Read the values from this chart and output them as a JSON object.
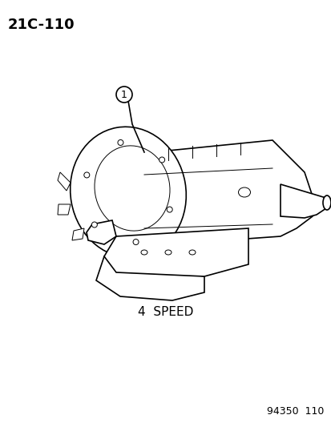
{
  "page_label": "21C-110",
  "caption": "4  SPEED",
  "part_number_label": "94350  110",
  "callout_number": "1",
  "background_color": "#ffffff",
  "line_color": "#000000",
  "text_color": "#000000",
  "page_label_fontsize": 13,
  "caption_fontsize": 11,
  "part_number_fontsize": 9,
  "callout_fontsize": 9,
  "fig_width": 4.14,
  "fig_height": 5.33,
  "dpi": 100,
  "image_path": null
}
